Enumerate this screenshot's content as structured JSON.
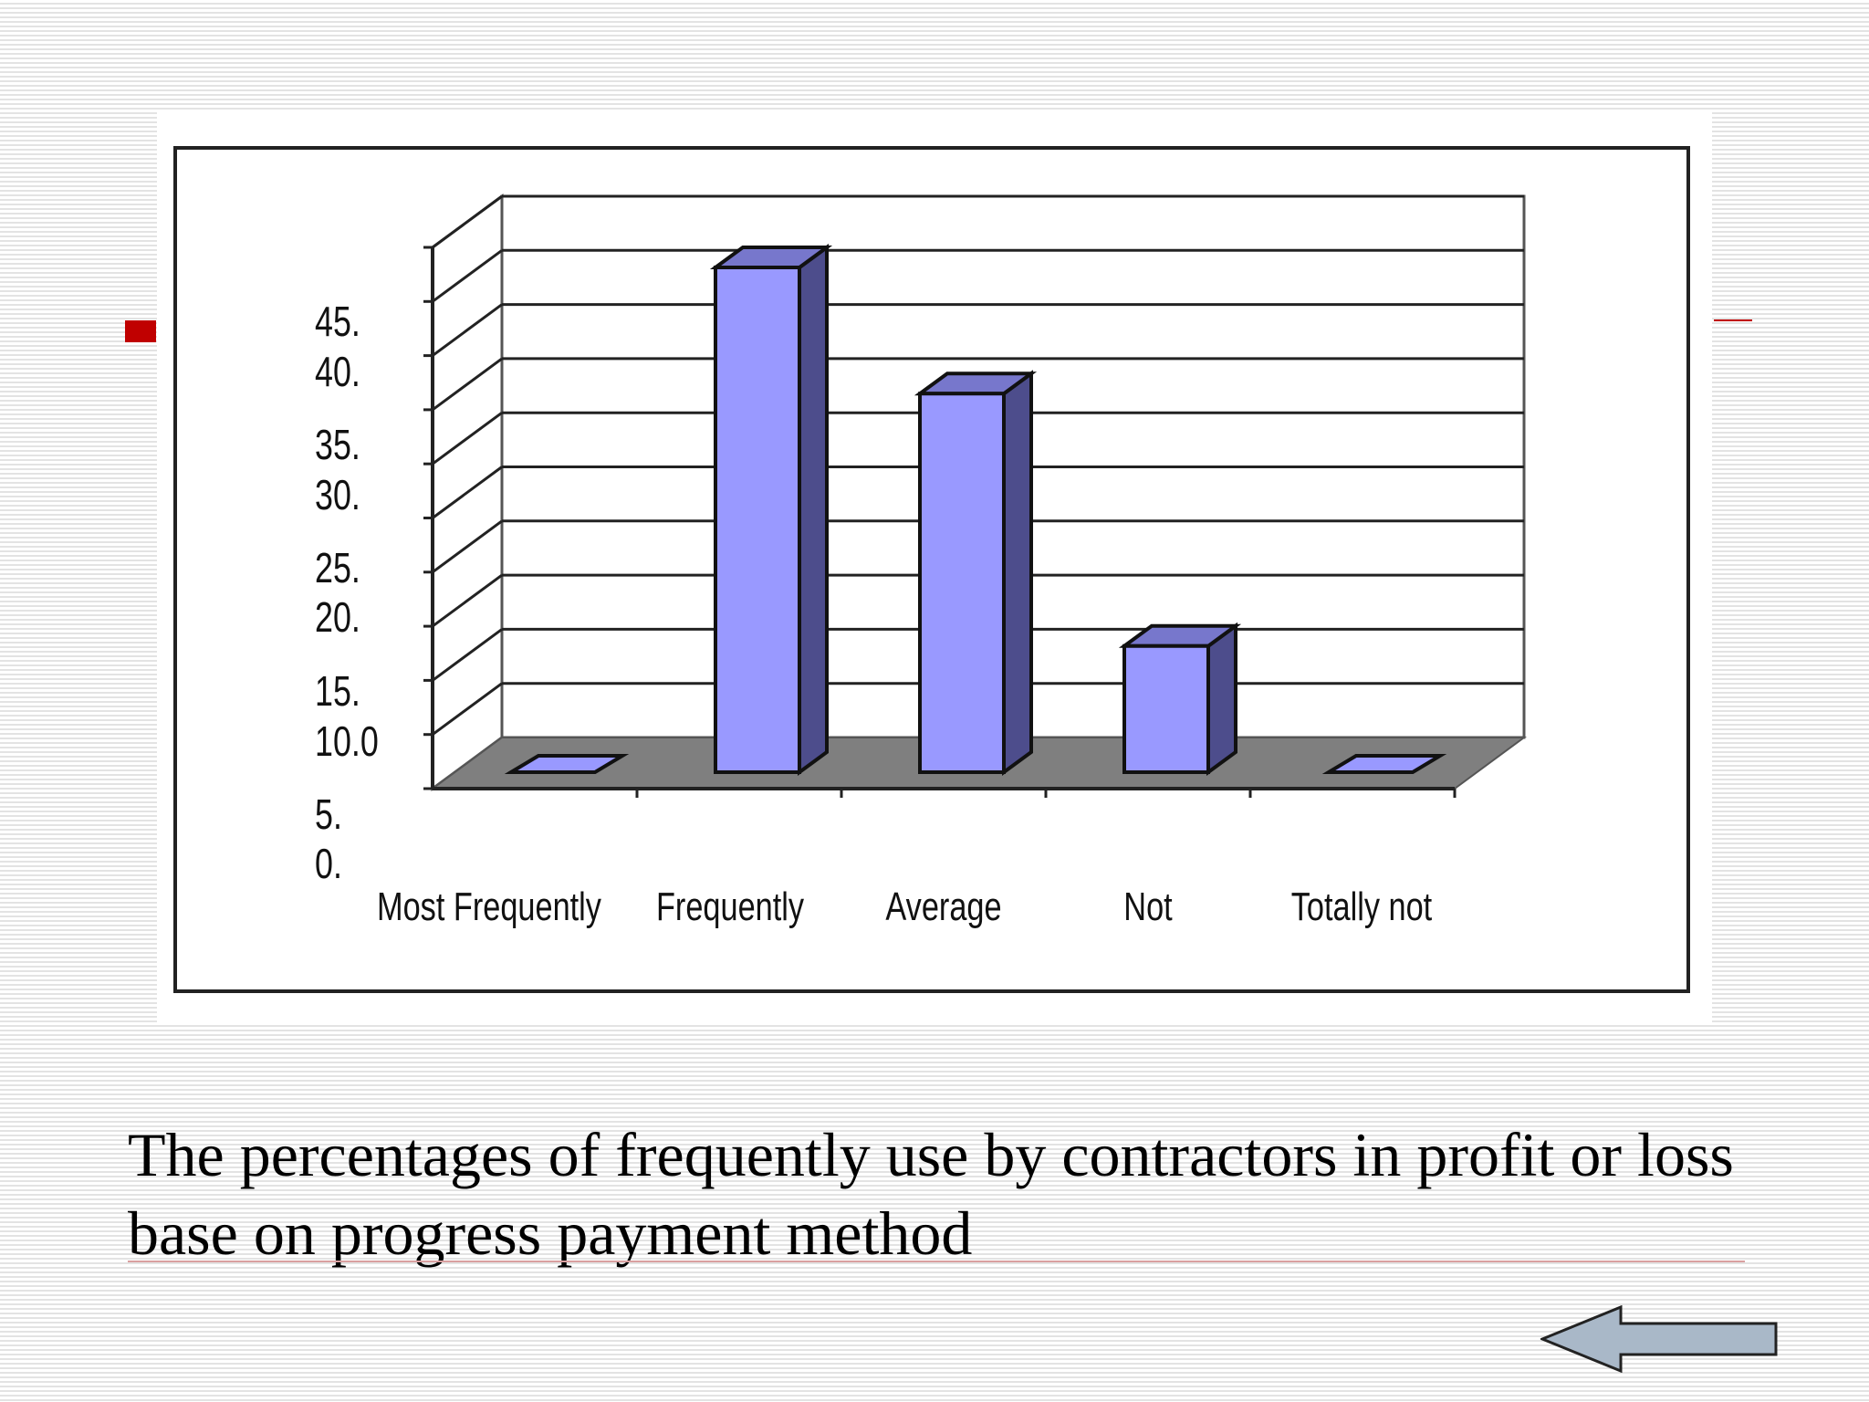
{
  "slide": {
    "caption": "The percentages of frequently use by contractors in profit or loss base on progress payment method",
    "bullet_color": "#c00000",
    "back_button_icon": "left-arrow-icon"
  },
  "chart_data": {
    "type": "bar",
    "style": "3d-column",
    "categories": [
      "Most Frequently",
      "Frequently",
      "Average",
      "Not",
      "Totally not"
    ],
    "values": [
      0,
      50,
      37.5,
      12.5,
      0
    ],
    "yticks": [
      "0.",
      "5.",
      "10.0",
      "15.",
      "20.",
      "25.",
      "30.",
      "35.",
      "40.",
      "45."
    ],
    "ylim": [
      0,
      50
    ],
    "grid": true,
    "legend": "none",
    "bar_color": "#9999ff",
    "title": "",
    "xlabel": "",
    "ylabel": ""
  }
}
